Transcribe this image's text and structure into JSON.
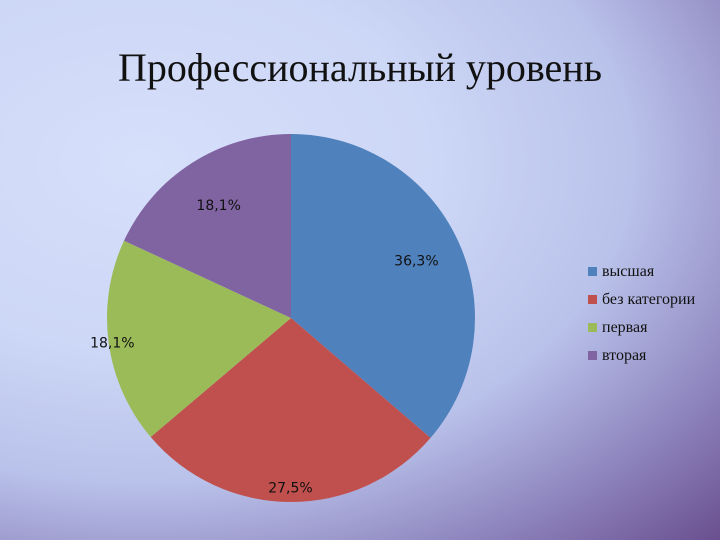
{
  "title": "Профессиональный уровень",
  "chart_data": {
    "type": "pie",
    "title": "Профессиональный уровень",
    "categories": [
      "высшая",
      "без категории",
      "первая",
      "вторая"
    ],
    "values": [
      36.3,
      27.5,
      18.1,
      18.1
    ],
    "labels": [
      "36,3%",
      "27,5%",
      "18,1%",
      "18,1%"
    ],
    "colors": [
      "#4f81bd",
      "#c0504d",
      "#9bbb59",
      "#8064a2"
    ],
    "legend": "right"
  }
}
